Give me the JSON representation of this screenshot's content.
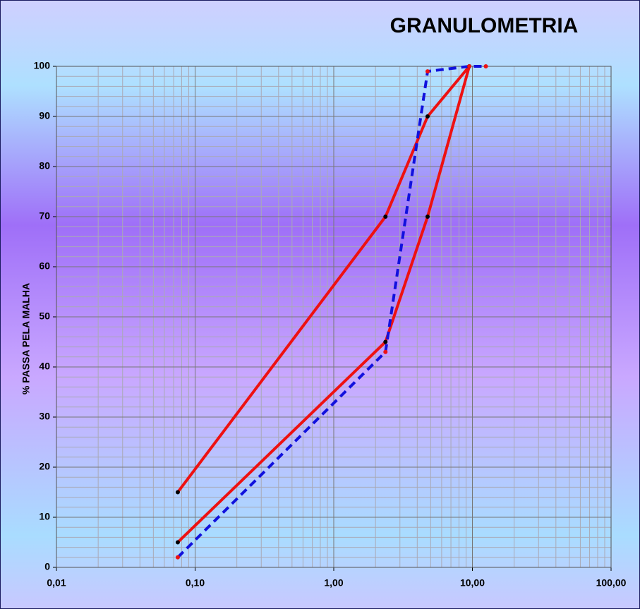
{
  "chart_data": {
    "type": "line",
    "title": "GRANULOMETRIA",
    "y_label": "% PASSA PELA MALHA",
    "x_log": true,
    "grid": true,
    "xlim": [
      0.01,
      100
    ],
    "xticks": [
      {
        "value": 0.01,
        "label": "0,01"
      },
      {
        "value": 0.1,
        "label": "0,10"
      },
      {
        "value": 1,
        "label": "1,00"
      },
      {
        "value": 10,
        "label": "10,00"
      },
      {
        "value": 100,
        "label": "100,00"
      }
    ],
    "ylim": [
      0,
      100
    ],
    "yticks": [
      0,
      10,
      20,
      30,
      40,
      50,
      60,
      70,
      80,
      90,
      100
    ],
    "series": [
      {
        "color": "#ee1111",
        "dashed": false,
        "marker_color": "#000000",
        "x": [
          0.075,
          2.36,
          4.75,
          9.5
        ],
        "values": [
          15,
          70,
          90,
          100
        ]
      },
      {
        "color": "#ee1111",
        "dashed": false,
        "marker_color": "#000000",
        "x": [
          0.075,
          2.36,
          4.75,
          9.5
        ],
        "values": [
          5,
          45,
          70,
          100
        ]
      },
      {
        "color": "#1111dd",
        "dashed": true,
        "marker_color": "#ee1111",
        "x": [
          0.075,
          2.36,
          4.75,
          9.5,
          12.5
        ],
        "values": [
          2,
          43,
          99,
          100,
          100
        ]
      }
    ]
  }
}
